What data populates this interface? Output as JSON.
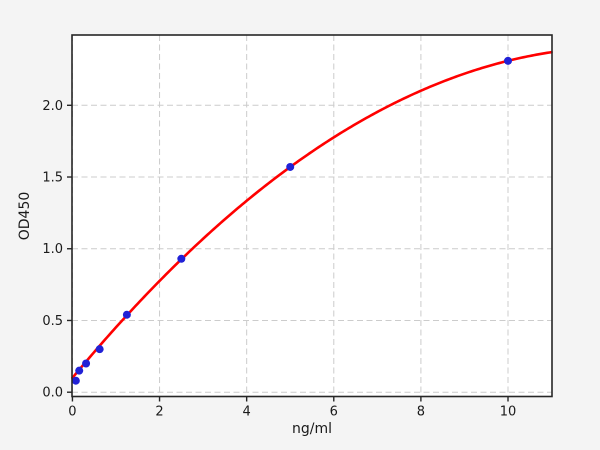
{
  "figure": {
    "background_color": "#f4f4f4",
    "plot_background_color": "#ffffff",
    "spine_color": "#262626",
    "grid_color": "#cccccc",
    "tick_color": "#262626",
    "text_color": "#1a1a1a"
  },
  "chart_data": {
    "type": "scatter",
    "title": "",
    "xlabel": "ng/ml",
    "ylabel": "OD450",
    "x": [
      0.078,
      0.156,
      0.313,
      0.625,
      1.25,
      2.5,
      5,
      10
    ],
    "y": [
      0.08,
      0.15,
      0.2,
      0.3,
      0.54,
      0.93,
      1.57,
      2.31
    ],
    "xlim": [
      -0.01,
      11.01
    ],
    "ylim": [
      -0.03,
      2.49
    ],
    "xticks": [
      0,
      2,
      4,
      6,
      8,
      10
    ],
    "xtick_labels": [
      "0",
      "2",
      "4",
      "6",
      "8",
      "10"
    ],
    "yticks": [
      0,
      0.5,
      1,
      1.5,
      2
    ],
    "ytick_labels": [
      "0.0",
      "0.5",
      "1.0",
      "1.5",
      "2.0"
    ],
    "grid": true,
    "grid_style": "dashed",
    "legend": false,
    "points": {
      "color": "#2121d6",
      "radius": 4
    },
    "fit_curve": {
      "type": "quadratic",
      "coefficients": [
        0.1,
        0.367,
        -0.0146
      ],
      "color": "#ff0000",
      "width": 2.6
    }
  }
}
